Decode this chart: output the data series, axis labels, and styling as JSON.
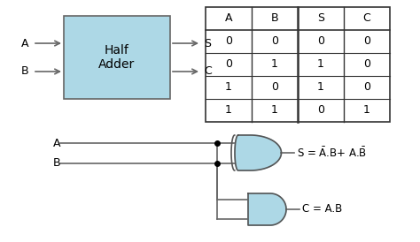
{
  "background_color": "#ffffff",
  "box_color": "#add8e6",
  "box_edge_color": "#666666",
  "box_label": "Half\nAdder",
  "table_headers": [
    "A",
    "B",
    "S",
    "C"
  ],
  "table_data": [
    [
      0,
      0,
      0,
      0
    ],
    [
      0,
      1,
      1,
      0
    ],
    [
      1,
      0,
      1,
      0
    ],
    [
      1,
      1,
      0,
      1
    ]
  ],
  "gate_color": "#add8e6",
  "gate_edge_color": "#555555",
  "line_color": "#666666",
  "text_color": "#000000",
  "font_size": 9
}
